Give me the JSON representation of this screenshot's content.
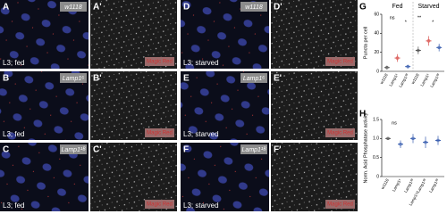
{
  "panels": [
    {
      "letter": "A",
      "genotype": "w1118",
      "condition": "L3; fed"
    },
    {
      "letter": "A'",
      "stain": "Magic Red"
    },
    {
      "letter": "D",
      "genotype": "w1118",
      "condition": "L3; starved"
    },
    {
      "letter": "D'",
      "stain": "Magic Red"
    },
    {
      "letter": "B",
      "genotype": "Lamp1⁶",
      "condition": "L3; fed"
    },
    {
      "letter": "B'",
      "stain": "Magic Red"
    },
    {
      "letter": "E",
      "genotype": "Lamp1⁶",
      "condition": "L3; starved"
    },
    {
      "letter": "E'",
      "stain": "Magic Red"
    },
    {
      "letter": "C",
      "genotype": "Lamp1¹ᴮ",
      "condition": "L3; fed"
    },
    {
      "letter": "C'",
      "stain": "Magic Red"
    },
    {
      "letter": "F",
      "genotype": "Lamp1¹ᴮ",
      "condition": "L3; starved"
    },
    {
      "letter": "F'",
      "stain": "Magic Red"
    }
  ],
  "chart_data": [
    {
      "type": "dot",
      "letter": "G",
      "groups": [
        "Fed",
        "Starved"
      ],
      "ylabel": "Puncta per cell",
      "categories": [
        "w1118",
        "Lamp1⁶",
        "Lamp1¹ᴮ",
        "w1118",
        "Lamp1⁶",
        "Lamp1¹ᴮ"
      ],
      "values": [
        4,
        14,
        5,
        22,
        32,
        25
      ],
      "errors": [
        2,
        4,
        2,
        4,
        5,
        4
      ],
      "colors": [
        "#555555",
        "#d9534f",
        "#3a5fb0",
        "#555555",
        "#d9534f",
        "#3a5fb0"
      ],
      "ylim": [
        0,
        60
      ],
      "yticks": [
        0,
        20,
        40,
        60
      ],
      "annotations": [
        "ns",
        "*",
        "**",
        "*"
      ]
    },
    {
      "type": "dot",
      "letter": "H",
      "ylabel": "Norm. Acid Phosphatase activity",
      "categories": [
        "w1118",
        "Lamp1⁶",
        "Lamp1¹ᴮ",
        "Lamp1⁶/Lamp1¹ᴮ",
        "Lamp1¹ᴮ"
      ],
      "values": [
        1,
        0.85,
        1,
        0.9,
        0.95
      ],
      "errors": [
        0.03,
        0.1,
        0.12,
        0.15,
        0.12
      ],
      "colors": [
        "#555555",
        "#3a5fb0",
        "#3a5fb0",
        "#3a5fb0",
        "#3a5fb0"
      ],
      "ylim": [
        0,
        1.5
      ],
      "yticks": [
        0,
        0.5,
        {
          "value": 1,
          "label": "1.0"
        },
        1.5
      ],
      "annotations": [
        "ns"
      ]
    }
  ]
}
